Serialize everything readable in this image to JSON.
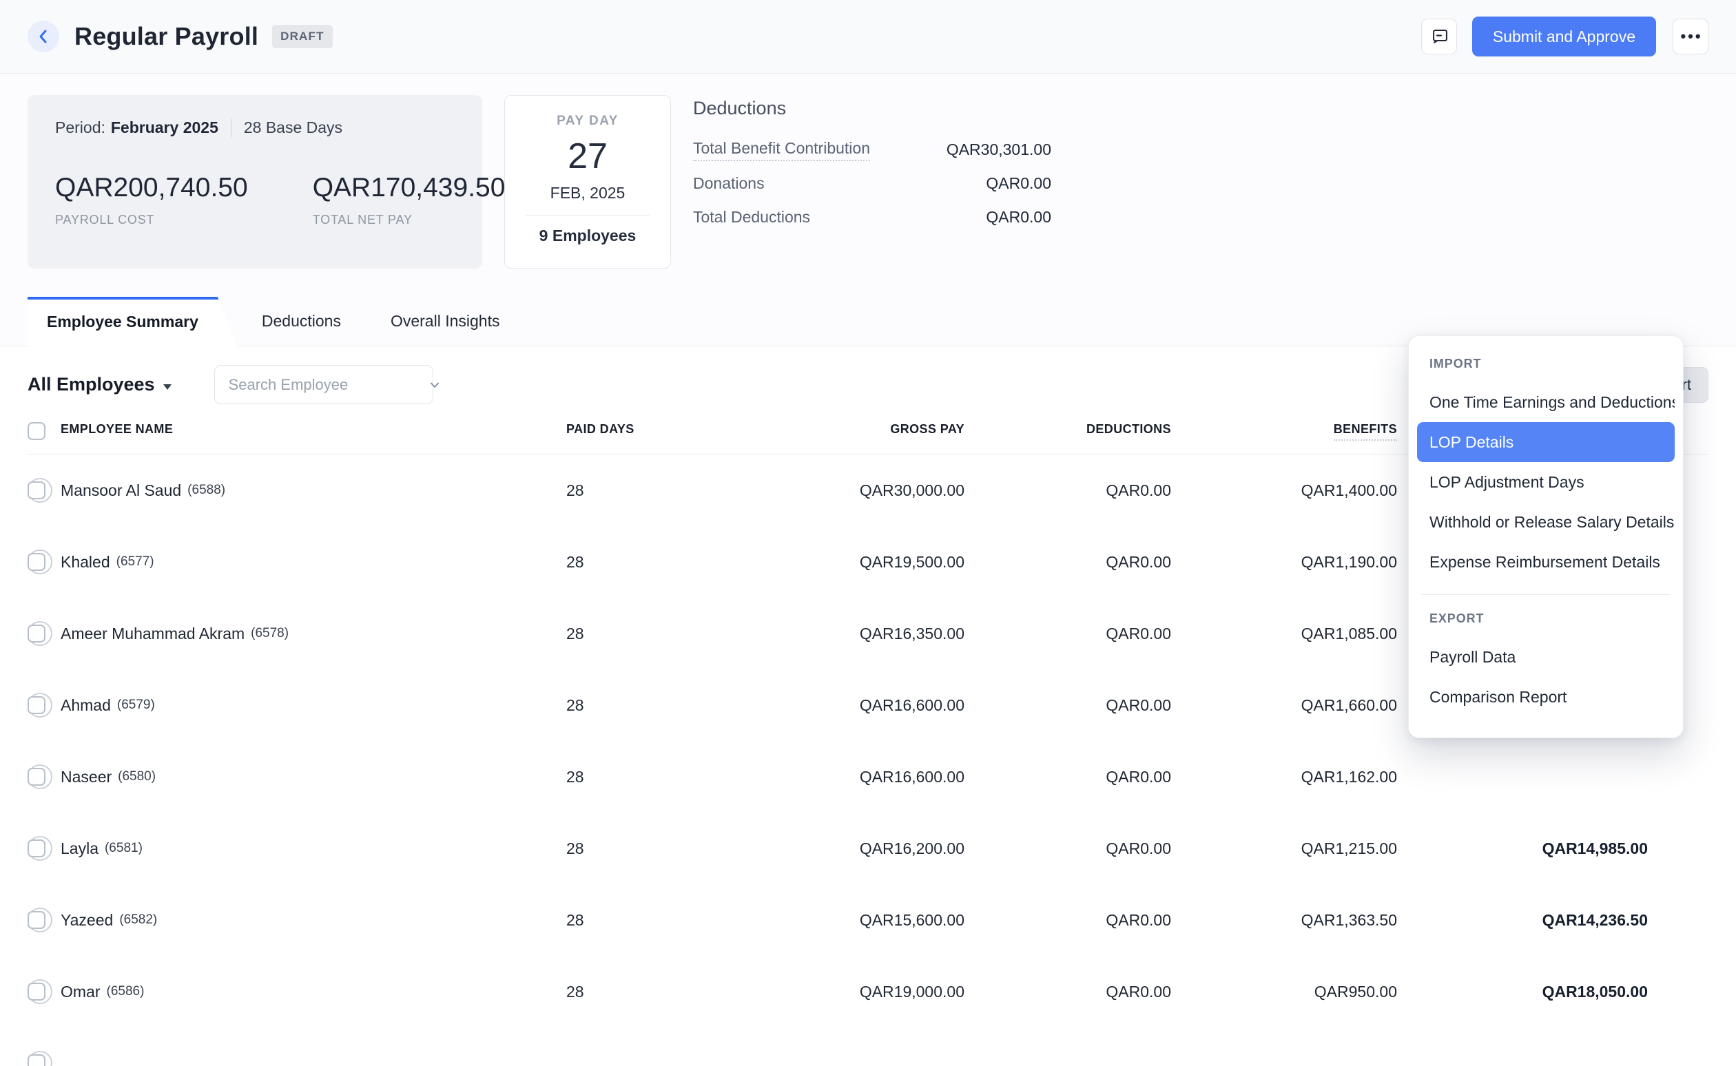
{
  "colors": {
    "accent_blue": "#4c7cf5",
    "menu_highlight_blue": "#5584f6",
    "tab_bar_blue": "#2e6bf2",
    "draft_badge_bg": "#e5e7eb"
  },
  "header": {
    "title": "Regular Payroll",
    "status_badge": "DRAFT",
    "submit_button": "Submit and Approve",
    "more_button": "•••"
  },
  "summary": {
    "period_label": "Period:",
    "period_value": "February 2025",
    "base_days": "28 Base Days",
    "payroll_cost": "QAR200,740.50",
    "payroll_cost_label": "PAYROLL COST",
    "total_net_pay": "QAR170,439.50",
    "total_net_pay_label": "TOTAL NET PAY",
    "pay_day": {
      "label": "PAY DAY",
      "day": "27",
      "month_year": "FEB, 2025",
      "employees": "9 Employees"
    },
    "deductions_panel": {
      "title": "Deductions",
      "rows": [
        {
          "label": "Total Benefit Contribution",
          "value": "QAR30,301.00",
          "underline": true
        },
        {
          "label": "Donations",
          "value": "QAR0.00",
          "underline": false
        },
        {
          "label": "Total Deductions",
          "value": "QAR0.00",
          "underline": false
        }
      ]
    }
  },
  "tabs": [
    {
      "label": "Employee Summary",
      "active": true
    },
    {
      "label": "Deductions",
      "active": false
    },
    {
      "label": "Overall Insights",
      "active": false
    }
  ],
  "toolbar": {
    "employee_filter": "All Employees",
    "search_placeholder": "Search Employee",
    "import_export": "Import / Export"
  },
  "table": {
    "columns": [
      "EMPLOYEE NAME",
      "PAID DAYS",
      "GROSS PAY",
      "DEDUCTIONS",
      "BENEFITS"
    ],
    "rows": [
      {
        "name": "Mansoor Al Saud",
        "emp_id": "(6588)",
        "paid_days": "28",
        "gross_pay": "QAR30,000.00",
        "deductions": "QAR0.00",
        "benefits": "QAR1,400.00",
        "net_pay": ""
      },
      {
        "name": "Khaled",
        "emp_id": "(6577)",
        "paid_days": "28",
        "gross_pay": "QAR19,500.00",
        "deductions": "QAR0.00",
        "benefits": "QAR1,190.00",
        "net_pay": ""
      },
      {
        "name": "Ameer Muhammad Akram",
        "emp_id": "(6578)",
        "paid_days": "28",
        "gross_pay": "QAR16,350.00",
        "deductions": "QAR0.00",
        "benefits": "QAR1,085.00",
        "net_pay": ""
      },
      {
        "name": "Ahmad",
        "emp_id": "(6579)",
        "paid_days": "28",
        "gross_pay": "QAR16,600.00",
        "deductions": "QAR0.00",
        "benefits": "QAR1,660.00",
        "net_pay": ""
      },
      {
        "name": "Naseer",
        "emp_id": "(6580)",
        "paid_days": "28",
        "gross_pay": "QAR16,600.00",
        "deductions": "QAR0.00",
        "benefits": "QAR1,162.00",
        "net_pay": ""
      },
      {
        "name": "Layla",
        "emp_id": "(6581)",
        "paid_days": "28",
        "gross_pay": "QAR16,200.00",
        "deductions": "QAR0.00",
        "benefits": "QAR1,215.00",
        "net_pay": "QAR14,985.00"
      },
      {
        "name": "Yazeed",
        "emp_id": "(6582)",
        "paid_days": "28",
        "gross_pay": "QAR15,600.00",
        "deductions": "QAR0.00",
        "benefits": "QAR1,363.50",
        "net_pay": "QAR14,236.50"
      },
      {
        "name": "Omar",
        "emp_id": "(6586)",
        "paid_days": "28",
        "gross_pay": "QAR19,000.00",
        "deductions": "QAR0.00",
        "benefits": "QAR950.00",
        "net_pay": "QAR18,050.00"
      },
      {
        "name": "",
        "emp_id": "",
        "paid_days": "",
        "gross_pay": "",
        "deductions": "",
        "benefits": "",
        "net_pay": ""
      }
    ]
  },
  "import_export_menu": {
    "import_label": "IMPORT",
    "import_items": [
      "One Time Earnings and Deductions",
      "LOP Details",
      "LOP Adjustment Days",
      "Withhold or Release Salary Details",
      "Expense Reimbursement Details"
    ],
    "selected_item": "LOP Details",
    "export_label": "EXPORT",
    "export_items": [
      "Payroll Data",
      "Comparison Report"
    ]
  }
}
